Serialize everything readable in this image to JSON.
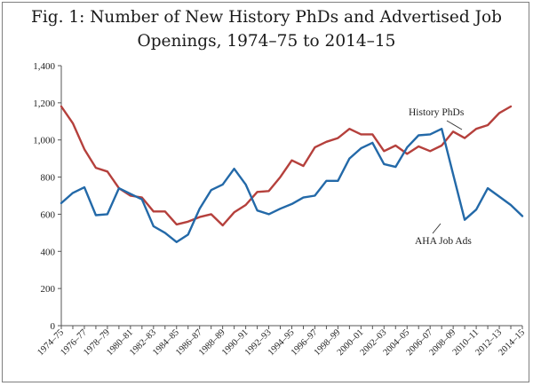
{
  "chart_data": {
    "type": "line",
    "title_line1": "Fig. 1: Number of New History PhDs and Advertised Job",
    "title_line2": "Openings, 1974–75 to 2014–15",
    "xlabel": "",
    "ylabel": "",
    "ylim": [
      0,
      1400
    ],
    "yticks": [
      "0",
      "200",
      "400",
      "600",
      "800",
      "1,000",
      "1,200",
      "1,400"
    ],
    "yticks_values": [
      0,
      200,
      400,
      600,
      800,
      1000,
      1200,
      1400
    ],
    "xtick_labels": [
      "1974–75",
      "1976–77",
      "1978–79",
      "1980–81",
      "1982–83",
      "1984–85",
      "1986–87",
      "1988–89",
      "1990–91",
      "1992–93",
      "1994–95",
      "1996–97",
      "1998–99",
      "2000–01",
      "2002–03",
      "2004–05",
      "2006–07",
      "2008–09",
      "2010–11",
      "2012–13",
      "2014–15"
    ],
    "n_points": 41,
    "series": [
      {
        "name": "History PhDs",
        "color": "#b5403c",
        "annotation": "History PhDs",
        "values": [
          1180,
          1090,
          950,
          850,
          830,
          740,
          700,
          690,
          615,
          615,
          545,
          560,
          585,
          600,
          540,
          610,
          650,
          720,
          725,
          800,
          890,
          860,
          960,
          990,
          1010,
          1060,
          1030,
          1030,
          940,
          970,
          925,
          965,
          940,
          970,
          1045,
          1010,
          1060,
          1080,
          1145,
          1180,
          null
        ]
      },
      {
        "name": "AHA Job Ads",
        "color": "#2369a8",
        "annotation": "AHA Job Ads",
        "values": [
          660,
          715,
          745,
          595,
          600,
          740,
          710,
          680,
          535,
          500,
          450,
          490,
          630,
          730,
          760,
          845,
          760,
          620,
          600,
          630,
          655,
          690,
          700,
          780,
          780,
          900,
          955,
          985,
          870,
          855,
          960,
          1025,
          1030,
          1060,
          815,
          570,
          625,
          740,
          695,
          650,
          590
        ]
      }
    ]
  }
}
